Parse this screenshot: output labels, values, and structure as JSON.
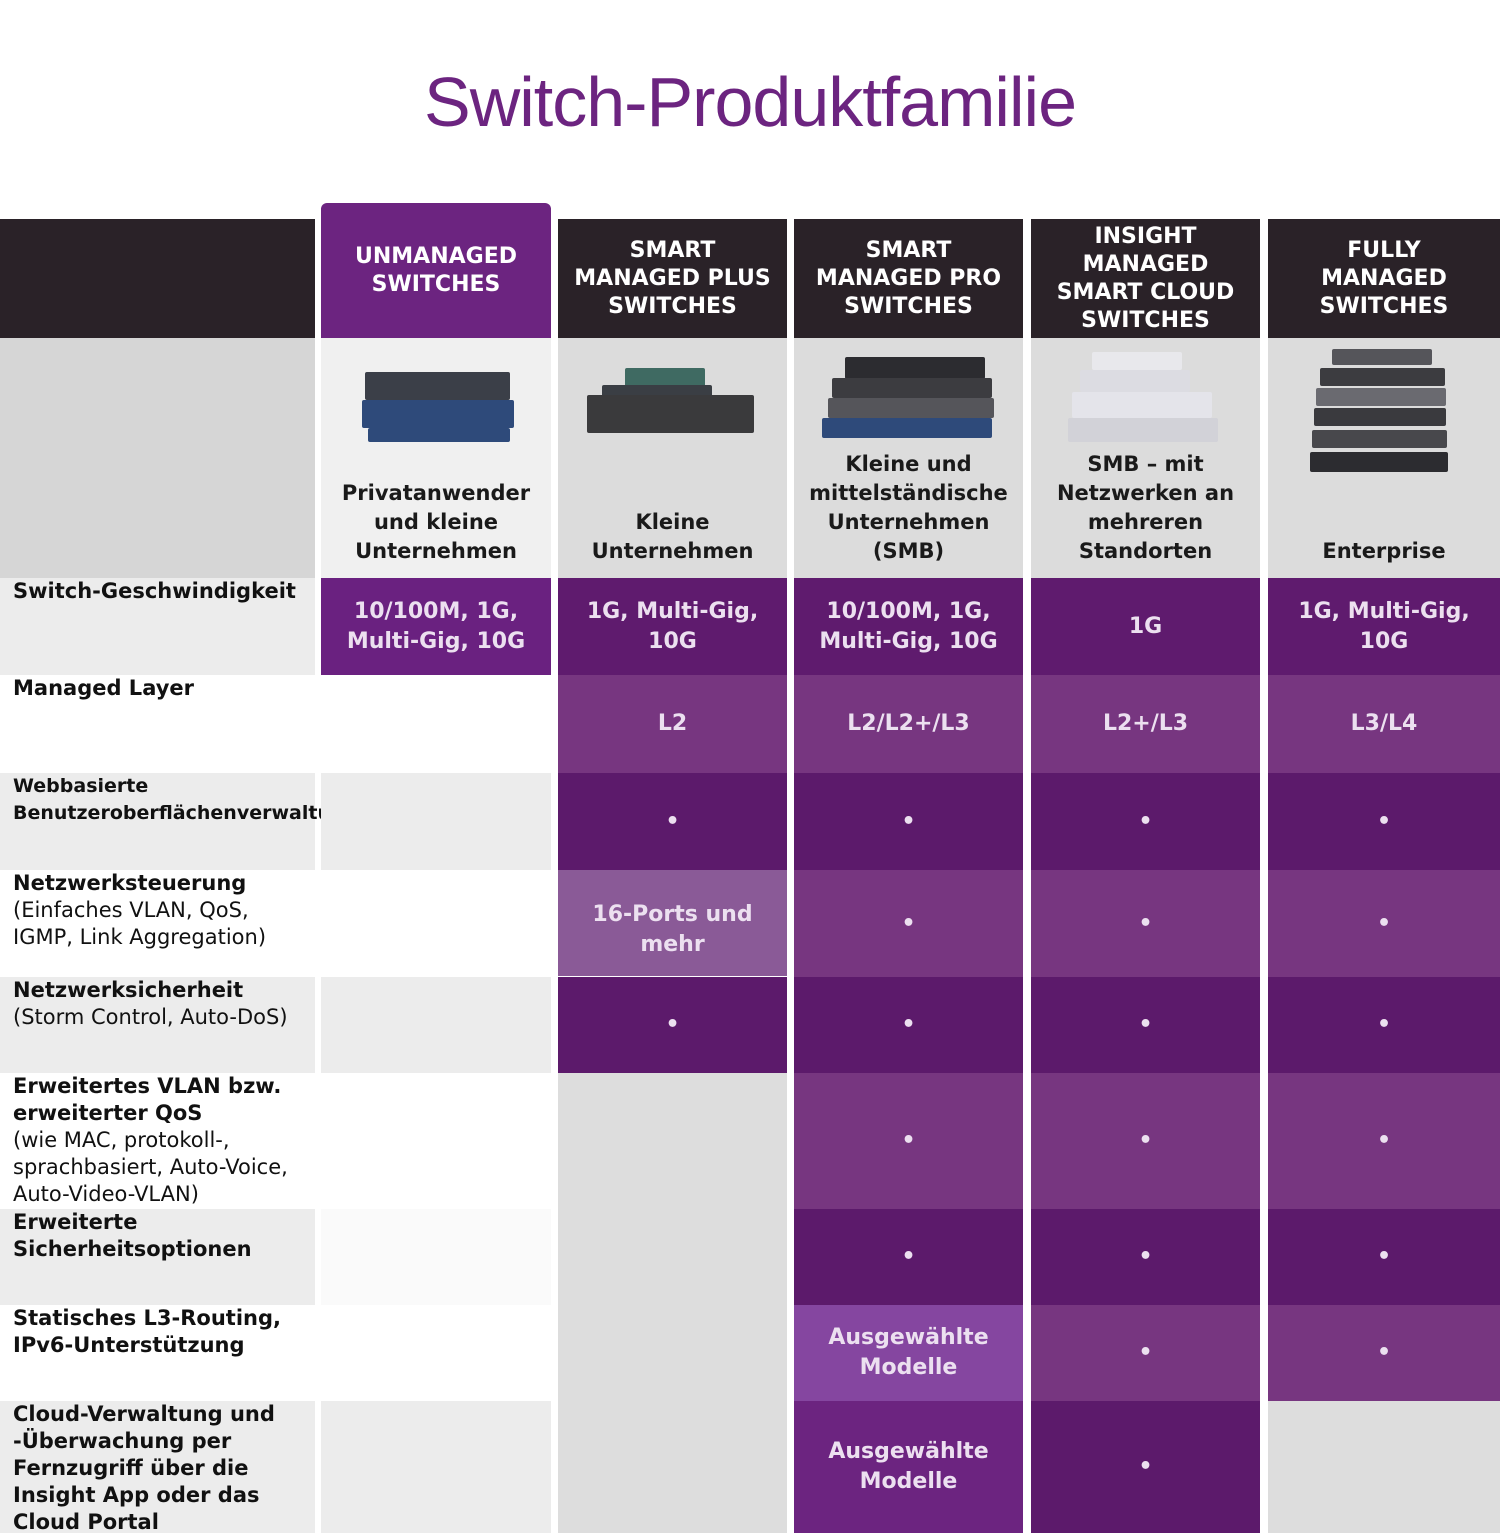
{
  "header": {
    "title": "Switch-Produktfamilie"
  },
  "table": {
    "columns": [
      "UNMANAGED SWITCHES",
      "SMART MANAGED PLUS SWITCHES",
      "SMART MANAGED PRO SWITCHES",
      "INSIGHT MANAGED SMART CLOUD SWITCHES",
      "FULLY MANAGED SWITCHES"
    ],
    "audiences": [
      "Privatanwender und kleine Unternehmen",
      "Kleine Unternehmen",
      "Kleine und mittelständische Unternehmen (SMB)",
      "SMB – mit Netzwerken an mehreren Standorten",
      "Enterprise"
    ],
    "rows": [
      {
        "label": "Switch-Geschwindigkeit",
        "cells": [
          "10/100M, 1G, Multi-Gig, 10G",
          "1G, Multi-Gig, 10G",
          "10/100M, 1G, Multi-Gig, 10G",
          "1G",
          "1G, Multi-Gig, 10G"
        ]
      },
      {
        "label": "Managed Layer",
        "cells": [
          null,
          "L2",
          "L2/L2+/L3",
          "L2+/L3",
          "L3/L4"
        ]
      },
      {
        "label": "Webbasierte Benutzeroberflächenverwaltung",
        "cells": [
          null,
          "•",
          "•",
          "•",
          "•"
        ]
      },
      {
        "label": "Netzwerksteuerung",
        "sublabel": "(Einfaches VLAN, QoS, IGMP, Link Aggregation)",
        "cells": [
          null,
          "16-Ports und mehr",
          "•",
          "•",
          "•"
        ]
      },
      {
        "label": "Netzwerksicherheit",
        "sublabel": "(Storm Control, Auto-DoS)",
        "cells": [
          null,
          "•",
          "•",
          "•",
          "•"
        ]
      },
      {
        "label": "Erweitertes VLAN bzw. erweiterter QoS",
        "sublabel": "(wie MAC, protokoll-, sprachbasiert, Auto-Voice, Auto-Video-VLAN)",
        "cells": [
          null,
          null,
          "•",
          "•",
          "•"
        ]
      },
      {
        "label": "Erweiterte Sicherheitsoptionen",
        "cells": [
          null,
          null,
          "•",
          "•",
          "•"
        ]
      },
      {
        "label": "Statisches L3-Routing, IPv6-Unterstützung",
        "cells": [
          null,
          null,
          "Ausgewählte Modelle",
          "•",
          "•"
        ]
      },
      {
        "label": "Cloud-Verwaltung und -Überwachung per Fernzugriff über die Insight App oder das Cloud Portal",
        "cells": [
          null,
          null,
          "Ausgewählte Modelle",
          "•",
          null
        ]
      }
    ]
  }
}
